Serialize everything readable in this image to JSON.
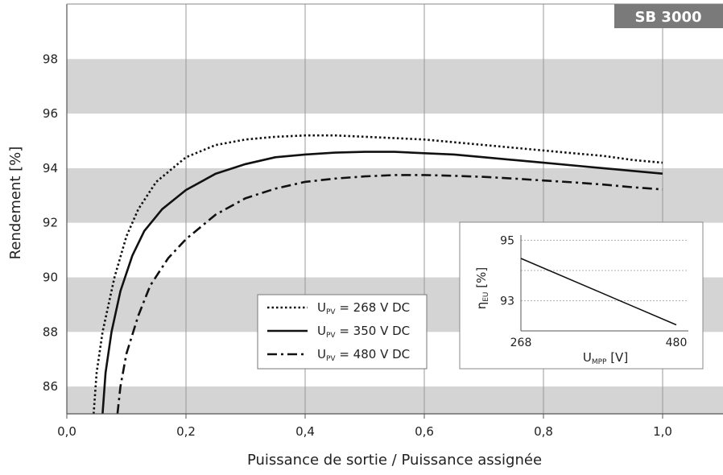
{
  "chart_data": {
    "type": "line",
    "badge": "SB 3000",
    "xlabel": "Puissance de sortie / Puissance assignée",
    "ylabel": "Rendement [%]",
    "xlim": [
      0.0,
      1.1
    ],
    "ylim": [
      85,
      100
    ],
    "xticks": [
      0.0,
      0.2,
      0.4,
      0.6,
      0.8,
      1.0
    ],
    "xtick_labels": [
      "0,0",
      "0,2",
      "0,4",
      "0,6",
      "0,8",
      "1,0"
    ],
    "yticks": [
      86,
      88,
      90,
      92,
      94,
      96,
      98
    ],
    "ytick_labels": [
      "86",
      "88",
      "90",
      "92",
      "94",
      "96",
      "98"
    ],
    "bands": [
      [
        85,
        86
      ],
      [
        88,
        90
      ],
      [
        92,
        94
      ],
      [
        96,
        98
      ]
    ],
    "grid": "vertical",
    "legend_position": "lower-center",
    "series": [
      {
        "label_main": "U",
        "label_sub": "PV",
        "label_rest": " = 268 V DC",
        "style": "dotted",
        "points": [
          [
            0.045,
            85.0
          ],
          [
            0.05,
            86.5
          ],
          [
            0.06,
            88.0
          ],
          [
            0.08,
            90.0
          ],
          [
            0.1,
            91.5
          ],
          [
            0.12,
            92.5
          ],
          [
            0.15,
            93.5
          ],
          [
            0.2,
            94.4
          ],
          [
            0.25,
            94.85
          ],
          [
            0.3,
            95.05
          ],
          [
            0.35,
            95.15
          ],
          [
            0.4,
            95.2
          ],
          [
            0.45,
            95.2
          ],
          [
            0.5,
            95.15
          ],
          [
            0.55,
            95.1
          ],
          [
            0.6,
            95.05
          ],
          [
            0.65,
            94.95
          ],
          [
            0.7,
            94.85
          ],
          [
            0.75,
            94.75
          ],
          [
            0.8,
            94.65
          ],
          [
            0.85,
            94.55
          ],
          [
            0.9,
            94.45
          ],
          [
            0.95,
            94.3
          ],
          [
            1.0,
            94.2
          ]
        ]
      },
      {
        "label_main": "U",
        "label_sub": "PV",
        "label_rest": " = 350 V DC",
        "style": "solid",
        "points": [
          [
            0.06,
            85.0
          ],
          [
            0.065,
            86.5
          ],
          [
            0.075,
            88.0
          ],
          [
            0.09,
            89.5
          ],
          [
            0.11,
            90.8
          ],
          [
            0.13,
            91.7
          ],
          [
            0.16,
            92.5
          ],
          [
            0.2,
            93.2
          ],
          [
            0.25,
            93.8
          ],
          [
            0.3,
            94.15
          ],
          [
            0.35,
            94.4
          ],
          [
            0.4,
            94.5
          ],
          [
            0.45,
            94.57
          ],
          [
            0.5,
            94.6
          ],
          [
            0.55,
            94.6
          ],
          [
            0.6,
            94.55
          ],
          [
            0.65,
            94.5
          ],
          [
            0.7,
            94.4
          ],
          [
            0.75,
            94.3
          ],
          [
            0.8,
            94.2
          ],
          [
            0.85,
            94.1
          ],
          [
            0.9,
            94.0
          ],
          [
            0.95,
            93.9
          ],
          [
            1.0,
            93.8
          ]
        ]
      },
      {
        "label_main": "U",
        "label_sub": "PV",
        "label_rest": " = 480 V DC",
        "style": "dash-dot",
        "points": [
          [
            0.085,
            85.0
          ],
          [
            0.09,
            86.0
          ],
          [
            0.1,
            87.2
          ],
          [
            0.12,
            88.6
          ],
          [
            0.14,
            89.7
          ],
          [
            0.17,
            90.7
          ],
          [
            0.2,
            91.4
          ],
          [
            0.25,
            92.3
          ],
          [
            0.3,
            92.9
          ],
          [
            0.35,
            93.25
          ],
          [
            0.4,
            93.5
          ],
          [
            0.45,
            93.62
          ],
          [
            0.5,
            93.7
          ],
          [
            0.55,
            93.75
          ],
          [
            0.6,
            93.75
          ],
          [
            0.65,
            93.72
          ],
          [
            0.7,
            93.68
          ],
          [
            0.75,
            93.62
          ],
          [
            0.8,
            93.55
          ],
          [
            0.85,
            93.48
          ],
          [
            0.9,
            93.4
          ],
          [
            0.95,
            93.3
          ],
          [
            1.0,
            93.22
          ]
        ]
      }
    ],
    "inset": {
      "xlabel_main": "U",
      "xlabel_sub": "MPP",
      "xlabel_rest": " [V]",
      "ylabel_main": "η",
      "ylabel_sub": "EU",
      "ylabel_rest": " [%]",
      "xlim": [
        268,
        480
      ],
      "ylim": [
        92,
        95
      ],
      "xtick_labels": [
        "268",
        "480"
      ],
      "ytick_labels": [
        "93",
        "95"
      ],
      "gridlines_y": [
        93,
        94,
        95
      ],
      "points": [
        [
          268,
          94.4
        ],
        [
          480,
          92.2
        ]
      ]
    }
  }
}
